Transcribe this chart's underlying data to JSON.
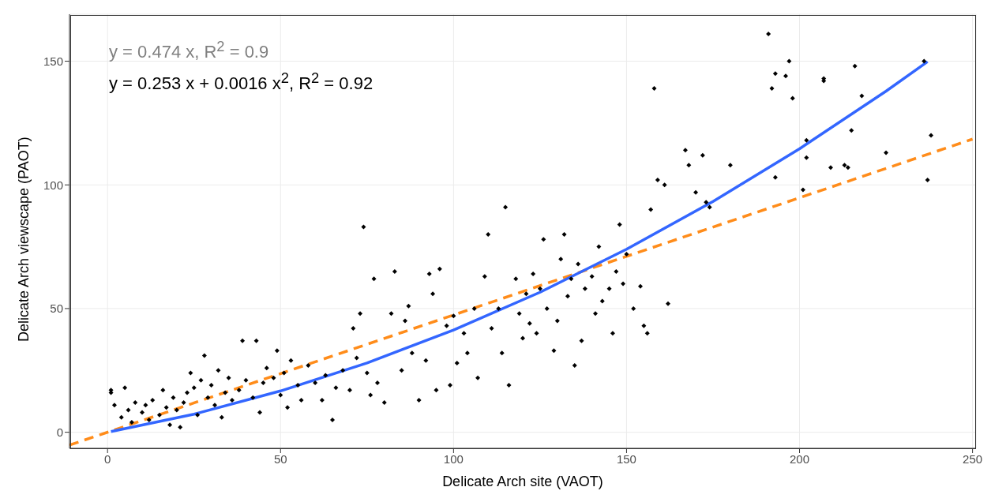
{
  "chart_data": {
    "type": "scatter",
    "xlabel": "Delicate Arch site (VAOT)",
    "ylabel": "Delicate Arch viewscape (PAOT)",
    "annotations": [
      "y = 0.474 x, R$^{2}$ = 0.9",
      "y = 0.253 x + 0.0016 x$^{2}$, R$^{2}$ = 0.92"
    ],
    "xlim": [
      -11,
      251
    ],
    "ylim": [
      -6.5,
      169
    ],
    "xticks": [
      0,
      50,
      100,
      150,
      200,
      250
    ],
    "yticks": [
      0,
      50,
      100,
      150
    ],
    "grid": true,
    "series": [
      {
        "marker": "diamond",
        "color": "#000000",
        "x": [
          1,
          1,
          2,
          4,
          5,
          6,
          7,
          8,
          10,
          11,
          12,
          13,
          15,
          16,
          17,
          18,
          19,
          20,
          21,
          22,
          23,
          24,
          25,
          26,
          27,
          28,
          29,
          30,
          31,
          32,
          33,
          34,
          35,
          36,
          38,
          39,
          40,
          42,
          43,
          44,
          45,
          46,
          48,
          49,
          50,
          51,
          52,
          53,
          55,
          56,
          58,
          60,
          62,
          63,
          65,
          66,
          68,
          70,
          71,
          72,
          73,
          74,
          75,
          76,
          77,
          78,
          80,
          82,
          83,
          85,
          86,
          87,
          88,
          90,
          92,
          93,
          94,
          95,
          96,
          98,
          99,
          100,
          101,
          103,
          104,
          106,
          107,
          109,
          110,
          111,
          113,
          114,
          115,
          116,
          118,
          119,
          120,
          121,
          122,
          123,
          124,
          125,
          126,
          127,
          129,
          130,
          131,
          132,
          133,
          134,
          135,
          136,
          137,
          138,
          140,
          141,
          142,
          143,
          145,
          146,
          147,
          148,
          149,
          150,
          152,
          154,
          155,
          156,
          157,
          158,
          159,
          161,
          162,
          167,
          168,
          170,
          172,
          173,
          174,
          180,
          191,
          192,
          193,
          193,
          196,
          197,
          198,
          201,
          202,
          202,
          207,
          207,
          209,
          213,
          214,
          215,
          216,
          218,
          225,
          236,
          237,
          238
        ],
        "values": [
          17,
          16,
          11,
          6,
          18,
          9,
          4,
          12,
          8,
          11,
          5,
          13,
          7,
          17,
          10,
          3,
          14,
          9,
          2,
          12,
          16,
          24,
          18,
          7,
          21,
          31,
          14,
          19,
          11,
          25,
          6,
          16,
          22,
          13,
          17,
          37,
          21,
          14,
          37,
          8,
          20,
          26,
          22,
          33,
          15,
          24,
          10,
          29,
          19,
          13,
          27,
          20,
          13,
          23,
          5,
          18,
          25,
          17,
          42,
          30,
          48,
          83,
          24,
          15,
          62,
          20,
          12,
          48,
          65,
          25,
          45,
          51,
          32,
          13,
          29,
          64,
          56,
          17,
          66,
          43,
          19,
          47,
          28,
          40,
          32,
          50,
          22,
          63,
          80,
          42,
          50,
          32,
          91,
          19,
          62,
          48,
          38,
          56,
          44,
          64,
          40,
          58,
          78,
          50,
          33,
          45,
          70,
          80,
          55,
          62,
          27,
          68,
          37,
          58,
          63,
          48,
          75,
          53,
          58,
          40,
          65,
          84,
          60,
          72,
          50,
          59,
          43,
          40,
          90,
          139,
          102,
          100,
          52,
          114,
          108,
          97,
          112,
          93,
          91,
          108,
          161,
          139,
          103,
          145,
          144,
          150,
          135,
          98,
          118,
          111,
          143,
          142,
          107,
          108,
          107,
          122,
          148,
          136,
          113,
          150,
          102,
          120
        ]
      },
      {
        "type": "line",
        "color": "#ff8c1a",
        "marker": "none",
        "line_style": "dashed",
        "x": [
          -11,
          250
        ],
        "values": [
          -5.2,
          118.5
        ]
      },
      {
        "type": "line",
        "color": "#3366ff",
        "marker": "none",
        "line_style": "solid",
        "x": [
          1,
          25,
          50,
          75,
          100,
          125,
          150,
          175,
          200,
          225,
          237
        ],
        "values": [
          0.3,
          7.3,
          16.7,
          28,
          41.3,
          56.6,
          74,
          93.3,
          114.6,
          137.9,
          149.8
        ]
      }
    ]
  }
}
